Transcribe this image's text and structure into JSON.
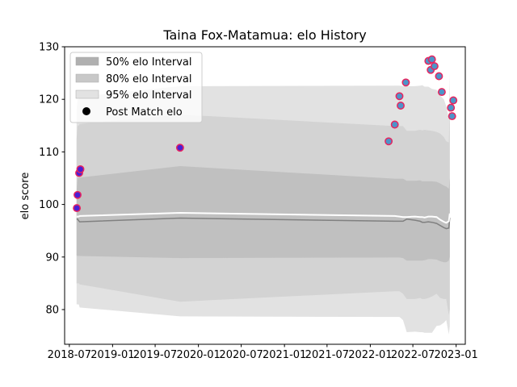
{
  "chart_data": {
    "type": "scatter",
    "title": "Taina Fox-Matamua: elo History",
    "xlabel": "",
    "ylabel": "elo score",
    "xlim": [
      "2018-06-11",
      "2023-02-09"
    ],
    "ylim": [
      73.4,
      130
    ],
    "x_ticks": [
      "2018-07",
      "2019-01",
      "2019-07",
      "2020-01",
      "2020-07",
      "2021-01",
      "2021-07",
      "2022-01",
      "2022-07",
      "2023-01"
    ],
    "x_tick_labels": [
      "2018-07",
      "2019-01",
      "2019-07",
      "2020-01",
      "2020-07",
      "2021-01",
      "2021-07",
      "2022-01",
      "2022-07",
      "2023-01"
    ],
    "y_ticks": [
      80,
      90,
      100,
      110,
      120,
      130
    ],
    "y_tick_labels": [
      "80",
      "90",
      "100",
      "110",
      "120",
      "130"
    ],
    "grid": false,
    "legend_position": "top-left",
    "legend": [
      {
        "label": "50% elo Interval",
        "kind": "band",
        "color": "#b0b0b0"
      },
      {
        "label": "80% elo Interval",
        "kind": "band",
        "color": "#c8c8c8"
      },
      {
        "label": "95% elo Interval",
        "kind": "band",
        "color": "#e2e2e2"
      },
      {
        "label": "Post Match elo",
        "kind": "marker",
        "color": "#000000"
      }
    ],
    "band_x": [
      "2018-08-01",
      "2018-08-05",
      "2018-08-10",
      "2018-08-14",
      "2019-10-15",
      "2022-04-15",
      "2022-05-05",
      "2022-05-20",
      "2022-06-05",
      "2022-07-10",
      "2022-08-01",
      "2022-08-10",
      "2022-08-20",
      "2022-09-05",
      "2022-09-20",
      "2022-10-10",
      "2022-10-25",
      "2022-11-10",
      "2022-11-20",
      "2022-12-01",
      "2022-12-05"
    ],
    "median": [
      97.2,
      97.2,
      96.9,
      96.7,
      97.4,
      96.8,
      96.8,
      96.8,
      97.2,
      97.0,
      96.8,
      96.6,
      96.6,
      96.7,
      96.6,
      96.4,
      96.0,
      95.6,
      95.4,
      95.5,
      97.5
    ],
    "expected": [
      97.7,
      97.7,
      97.7,
      97.8,
      98.4,
      97.8,
      97.7,
      97.6,
      97.6,
      97.7,
      97.6,
      97.6,
      97.5,
      97.7,
      97.7,
      97.6,
      97.1,
      96.7,
      96.5,
      96.8,
      98.3
    ],
    "bands": {
      "p50_upper": [
        102.5,
        105.0,
        105.0,
        105.1,
        107.3,
        104.9,
        104.9,
        104.9,
        104.5,
        104.5,
        104.6,
        104.4,
        104.4,
        104.4,
        104.4,
        104.3,
        104.0,
        103.6,
        103.4,
        103.0,
        105.0
      ],
      "p50_lower": [
        90.3,
        90.2,
        90.2,
        90.2,
        89.8,
        89.9,
        89.9,
        89.8,
        89.3,
        89.3,
        89.3,
        89.3,
        89.4,
        89.6,
        89.6,
        89.5,
        89.2,
        89.0,
        89.0,
        89.3,
        90.0
      ],
      "p80_upper": [
        112.5,
        115.0,
        115.0,
        115.3,
        117.1,
        114.9,
        114.9,
        114.9,
        114.0,
        114.0,
        114.2,
        114.1,
        114.2,
        114.1,
        114.0,
        113.8,
        113.5,
        112.8,
        112.0,
        111.8,
        119.0
      ],
      "p80_lower": [
        85.0,
        85.0,
        85.0,
        84.8,
        81.5,
        83.5,
        83.5,
        83.0,
        82.0,
        82.0,
        82.2,
        82.0,
        82.0,
        82.2,
        82.5,
        83.0,
        82.2,
        82.0,
        82.0,
        79.0,
        80.0
      ],
      "p95_upper": [
        118.0,
        120.0,
        120.0,
        120.5,
        122.5,
        122.6,
        122.6,
        122.5,
        122.5,
        122.5,
        122.6,
        122.7,
        122.4,
        122.4,
        122.0,
        121.8,
        120.7,
        120.0,
        118.7,
        116.4,
        125.0
      ],
      "p95_lower": [
        81.0,
        81.0,
        81.0,
        80.4,
        78.7,
        78.6,
        78.6,
        78.0,
        75.7,
        75.8,
        75.7,
        75.7,
        75.6,
        75.6,
        75.6,
        76.9,
        77.0,
        77.5,
        78.0,
        75.3,
        76.8
      ]
    },
    "points": {
      "x": [
        "2018-08-02",
        "2018-08-05",
        "2018-08-12",
        "2018-08-17",
        "2019-10-15",
        "2022-03-20",
        "2022-04-15",
        "2022-05-05",
        "2022-05-10",
        "2022-06-01",
        "2022-09-05",
        "2022-09-15",
        "2022-09-20",
        "2022-10-01",
        "2022-10-20",
        "2022-11-01",
        "2022-12-10",
        "2022-12-15",
        "2022-12-20"
      ],
      "y": [
        99.3,
        101.8,
        106.0,
        106.7,
        110.8,
        112.0,
        115.2,
        120.6,
        118.8,
        123.2,
        127.3,
        125.6,
        127.6,
        126.3,
        124.4,
        121.4,
        118.4,
        116.8,
        119.8
      ],
      "fill": "#4d94c9",
      "edge": "#e8245e",
      "first_points_fill": "#4a1fd4",
      "first_points_count": 5
    },
    "colors": {
      "median_line": "#808080",
      "expected_line": "#ffffff",
      "p50": "#c0c0c0",
      "p80": "#d3d3d3",
      "p95": "#e2e2e2"
    }
  }
}
